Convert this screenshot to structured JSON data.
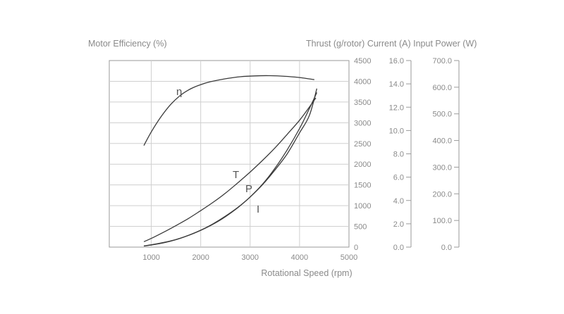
{
  "chart_data": {
    "type": "line",
    "left_axis_label": "Motor Efficiency (%)",
    "right_axes_label": "Thrust (g/rotor) Current (A) Input Power (W)",
    "xlabel": "Rotational Speed (rpm)",
    "x_ticks": [
      "1000",
      "2000",
      "3000",
      "4000",
      "5000"
    ],
    "xlim": [
      150,
      5000
    ],
    "grid": true,
    "thrust_axis": {
      "ylim": [
        0,
        4500
      ],
      "ticks": [
        "0",
        "500",
        "1000",
        "1500",
        "2000",
        "2500",
        "3000",
        "3500",
        "4000",
        "4500"
      ]
    },
    "current_axis": {
      "ylim": [
        0,
        16
      ],
      "ticks": [
        "0.0",
        "2.0",
        "4.0",
        "6.0",
        "8.0",
        "10.0",
        "12.0",
        "14.0",
        "16.0"
      ]
    },
    "power_axis": {
      "ylim": [
        0,
        700
      ],
      "ticks": [
        "0.0",
        "100.0",
        "200.0",
        "300.0",
        "400.0",
        "500.0",
        "600.0",
        "700.0"
      ]
    },
    "series": [
      {
        "name": "η",
        "axis": "thrust",
        "x": [
          850,
          1000,
          1200,
          1400,
          1600,
          1800,
          2000,
          2200,
          2500,
          2800,
          3100,
          3400,
          3700,
          4000,
          4300
        ],
        "y": [
          2450,
          2780,
          3150,
          3450,
          3670,
          3820,
          3920,
          3990,
          4060,
          4110,
          4130,
          4135,
          4120,
          4090,
          4040
        ]
      },
      {
        "name": "T",
        "axis": "thrust",
        "x": [
          850,
          1000,
          1250,
          1500,
          1750,
          2000,
          2250,
          2500,
          2750,
          3000,
          3250,
          3500,
          3750,
          4000,
          4200,
          4330
        ],
        "y": [
          130,
          210,
          360,
          520,
          690,
          880,
          1080,
          1300,
          1550,
          1810,
          2090,
          2390,
          2720,
          3060,
          3380,
          3600
        ]
      },
      {
        "name": "P",
        "axis": "power",
        "x": [
          850,
          1000,
          1250,
          1500,
          1750,
          2000,
          2250,
          2500,
          2750,
          3000,
          3250,
          3500,
          3750,
          4000,
          4200,
          4350
        ],
        "y": [
          4,
          8,
          16,
          28,
          44,
          63,
          86,
          114,
          148,
          188,
          236,
          295,
          365,
          445,
          520,
          580
        ]
      },
      {
        "name": "I",
        "axis": "current",
        "x": [
          850,
          1000,
          1250,
          1500,
          1750,
          2000,
          2250,
          2500,
          2750,
          3000,
          3250,
          3500,
          3750,
          4000,
          4200,
          4350
        ],
        "y": [
          0.1,
          0.2,
          0.4,
          0.65,
          1.0,
          1.45,
          2.0,
          2.65,
          3.4,
          4.3,
          5.35,
          6.6,
          8.0,
          9.8,
          11.3,
          13.6
        ]
      }
    ]
  }
}
